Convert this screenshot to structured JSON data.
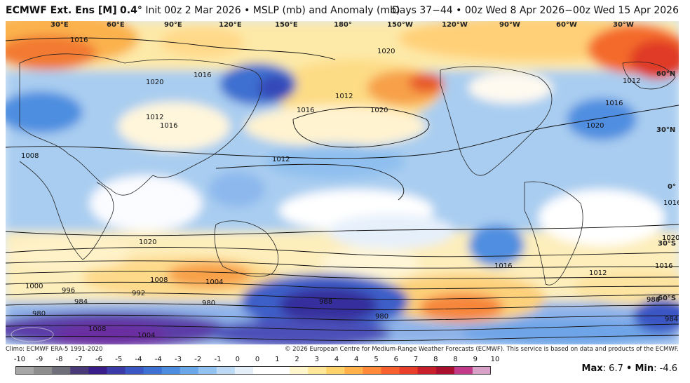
{
  "title": {
    "model": "ECMWF Ext. Ens [M]",
    "resolution": "0.4°",
    "init": "Init 00z 2 Mar 2026",
    "separator": "•",
    "field": "MSLP (mb) and Anomaly (mb)",
    "valid": "Days 37−44 • 00z Wed 8 Apr 2026−00z Wed 15 Apr 2026"
  },
  "longitude_labels": [
    "30°E",
    "60°E",
    "90°E",
    "120°E",
    "150°E",
    "180°",
    "150°W",
    "120°W",
    "90°W",
    "60°W",
    "30°W"
  ],
  "latitude_labels": [
    "60°N",
    "30°N",
    "0°",
    "30°S",
    "60°S"
  ],
  "contour_labels": [
    "1016",
    "1020",
    "1016",
    "1020",
    "1012",
    "1016",
    "1020",
    "1012",
    "1016",
    "1020",
    "1008",
    "1012",
    "1016",
    "1020",
    "1012",
    "1016",
    "1020",
    "1008",
    "1004",
    "1000",
    "996",
    "992",
    "984",
    "980",
    "988",
    "980",
    "1008",
    "1004",
    "980",
    "984",
    "1020",
    "1016",
    "1012",
    "1016",
    "988",
    "984"
  ],
  "footer": {
    "climo": "Climo: ECMWF ERA-5 1991-2020",
    "copyright": "© 2026 European Centre for Medium-Range Weather Forecasts (ECMWF). This service is based on data and products of the ECMWF."
  },
  "colorbar": {
    "ticks": [
      "-10",
      "-9",
      "-8",
      "-7",
      "-6",
      "-5",
      "-4",
      "-4",
      "-3",
      "-2",
      "-1",
      "0",
      "0",
      "1",
      "2",
      "3",
      "4",
      "4",
      "5",
      "6",
      "7",
      "8",
      "8",
      "9",
      "10"
    ],
    "colors": [
      "#a7a7a7",
      "#8e8e8e",
      "#6f6f7a",
      "#4a3a7a",
      "#3a1f8a",
      "#3c3ca8",
      "#3b57c4",
      "#3d72d4",
      "#4e8ee0",
      "#6aa8ea",
      "#92c2f2",
      "#bcdaf6",
      "#e4effa",
      "#ffffff",
      "#ffffff",
      "#fff6cc",
      "#ffe79a",
      "#ffd36a",
      "#ffb24a",
      "#ff8a3a",
      "#f8602e",
      "#e83e2a",
      "#c8202a",
      "#a8102e",
      "#c23a8a",
      "#d9a0c8"
    ]
  },
  "stats": {
    "max_label": "Max",
    "max_value": "6.7",
    "min_label": "Min",
    "min_value": "-4.6",
    "sep": "•"
  }
}
